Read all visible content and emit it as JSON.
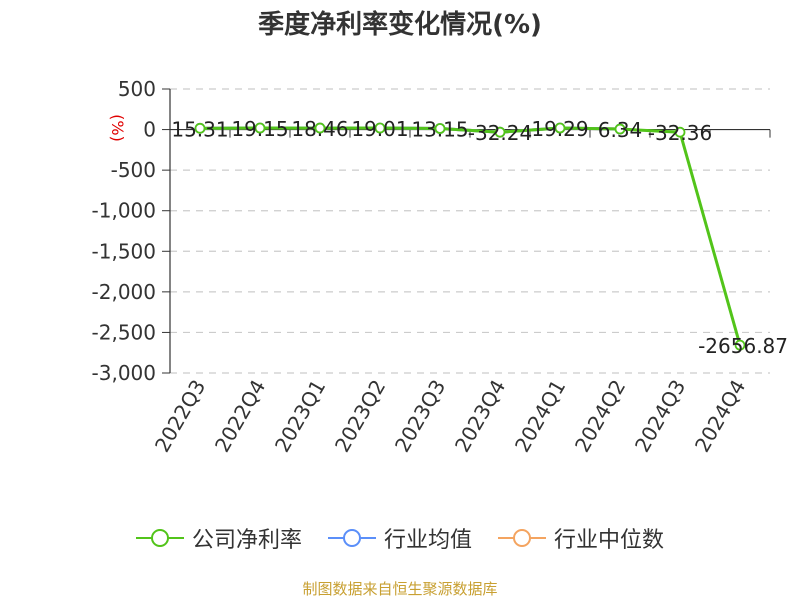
{
  "chart_data": {
    "type": "line",
    "title": "季度净利率变化情况(%)",
    "ylabel": "(%)",
    "categories": [
      "2022Q3",
      "2022Q4",
      "2023Q1",
      "2023Q2",
      "2023Q3",
      "2023Q4",
      "2024Q1",
      "2024Q2",
      "2024Q3",
      "2024Q4"
    ],
    "ylim": [
      -3000,
      500
    ],
    "yticks": [
      500,
      0,
      -500,
      -1000,
      -1500,
      -2000,
      -2500,
      -3000
    ],
    "ytick_labels": [
      "500",
      "0",
      "-500",
      "-1,000",
      "-1,500",
      "-2,000",
      "-2,500",
      "-3,000"
    ],
    "grid": true,
    "series": [
      {
        "name": "公司净利率",
        "color": "#52c41a",
        "values": [
          15.31,
          19.15,
          18.46,
          19.01,
          13.15,
          -32.24,
          19.29,
          6.34,
          -32.36,
          -2656.87
        ],
        "labels": [
          "15.31",
          "19.15",
          "18.46",
          "19.01",
          "13.15",
          "-32.24",
          "19.29",
          "6.34",
          "-32.36",
          "-2656.87"
        ]
      },
      {
        "name": "行业均值",
        "color": "#5b8ff9",
        "values": [
          15.31,
          19.15,
          18.46,
          19.01,
          13.15,
          -32.24,
          19.29,
          6.34,
          null,
          null
        ]
      },
      {
        "name": "行业中位数",
        "color": "#f4a460",
        "values": [
          15.31,
          19.15,
          18.46,
          19.01,
          13.15,
          -32.24,
          19.29,
          6.34,
          null,
          null
        ]
      }
    ],
    "legend_position": "bottom"
  },
  "source": "制图数据来自恒生聚源数据库"
}
